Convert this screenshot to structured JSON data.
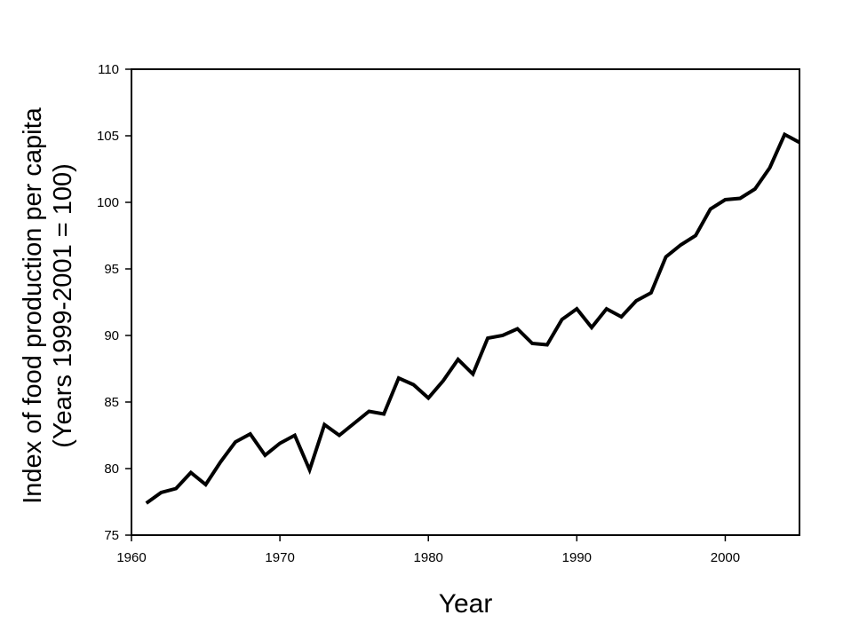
{
  "chart_data": {
    "type": "line",
    "xlabel": "Year",
    "ylabel_line1": "Index of food production per capita",
    "ylabel_line2": "(Years 1999-2001 = 100)",
    "xlim": [
      1960,
      2005
    ],
    "ylim": [
      75,
      110
    ],
    "xticks": [
      1960,
      1970,
      1980,
      1990,
      2000
    ],
    "yticks": [
      75,
      80,
      85,
      90,
      95,
      100,
      105,
      110
    ],
    "grid": false,
    "line_color": "#000000",
    "series": [
      {
        "x": [
          1961,
          1962,
          1963,
          1964,
          1965,
          1966,
          1967,
          1968,
          1969,
          1970,
          1971,
          1972,
          1973,
          1974,
          1975,
          1976,
          1977,
          1978,
          1979,
          1980,
          1981,
          1982,
          1983,
          1984,
          1985,
          1986,
          1987,
          1988,
          1989,
          1990,
          1991,
          1992,
          1993,
          1994,
          1995,
          1996,
          1997,
          1998,
          1999,
          2000,
          2001,
          2002,
          2003,
          2004,
          2005
        ],
        "values": [
          77.4,
          78.2,
          78.5,
          79.7,
          78.8,
          80.5,
          82.0,
          82.6,
          81.0,
          81.9,
          82.5,
          79.9,
          83.3,
          82.5,
          83.4,
          84.3,
          84.1,
          86.8,
          86.3,
          85.3,
          86.6,
          88.2,
          87.1,
          89.8,
          90.0,
          90.5,
          89.4,
          89.3,
          91.2,
          92.0,
          90.6,
          92.0,
          91.4,
          92.6,
          93.2,
          95.9,
          96.8,
          97.5,
          99.5,
          100.2,
          100.3,
          101.0,
          102.6,
          105.1,
          104.5
        ]
      }
    ]
  }
}
